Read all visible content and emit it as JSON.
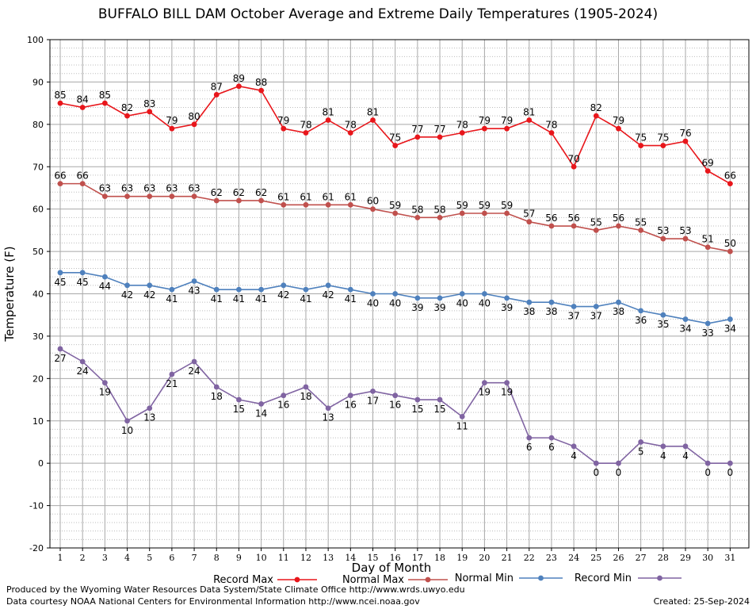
{
  "chart_data": {
    "type": "line",
    "title": "BUFFALO BILL DAM October Average and Extreme Daily Temperatures (1905-2024)",
    "xlabel": "Day of Month",
    "ylabel": "Temperature (F)",
    "ylim": [
      -20,
      100
    ],
    "yticks": [
      -20,
      -10,
      0,
      10,
      20,
      30,
      40,
      50,
      60,
      70,
      80,
      90,
      100
    ],
    "x": [
      1,
      2,
      3,
      4,
      5,
      6,
      7,
      8,
      9,
      10,
      11,
      12,
      13,
      14,
      15,
      16,
      17,
      18,
      19,
      20,
      21,
      22,
      23,
      24,
      25,
      26,
      27,
      28,
      29,
      30,
      31
    ],
    "grid": true,
    "legend_position": "bottom",
    "series": [
      {
        "name": "Record Max",
        "color": "#e8161b",
        "label_position": "above",
        "values": [
          85,
          84,
          85,
          82,
          83,
          79,
          80,
          87,
          89,
          88,
          79,
          78,
          81,
          78,
          81,
          75,
          77,
          77,
          78,
          79,
          79,
          81,
          78,
          70,
          82,
          79,
          75,
          75,
          76,
          69,
          66
        ]
      },
      {
        "name": "Normal Max",
        "color": "#c0504d",
        "label_position": "above",
        "values": [
          66,
          66,
          63,
          63,
          63,
          63,
          63,
          62,
          62,
          62,
          61,
          61,
          61,
          61,
          60,
          59,
          58,
          58,
          59,
          59,
          59,
          57,
          56,
          56,
          55,
          56,
          55,
          53,
          53,
          51,
          50
        ]
      },
      {
        "name": "Normal Min",
        "color": "#4f81bd",
        "label_position": "below",
        "values": [
          45,
          45,
          44,
          42,
          42,
          41,
          43,
          41,
          41,
          41,
          42,
          41,
          42,
          41,
          40,
          40,
          39,
          39,
          40,
          40,
          39,
          38,
          38,
          37,
          37,
          38,
          36,
          35,
          34,
          33,
          34
        ]
      },
      {
        "name": "Record Min",
        "color": "#8064a2",
        "label_position": "below",
        "values": [
          27,
          24,
          19,
          10,
          13,
          21,
          24,
          18,
          15,
          14,
          16,
          18,
          13,
          16,
          17,
          16,
          15,
          15,
          11,
          19,
          19,
          6,
          6,
          4,
          0,
          0,
          5,
          4,
          4,
          0,
          0
        ]
      }
    ]
  },
  "footer": {
    "line1": "Produced by the Wyoming Water Resources Data System/State Climate Office http://www.wrds.uwyo.edu",
    "line2": "Data courtesy NOAA National Centers for Environmental Information http://www.ncei.noaa.gov",
    "created": "Created:  25-Sep-2024"
  }
}
